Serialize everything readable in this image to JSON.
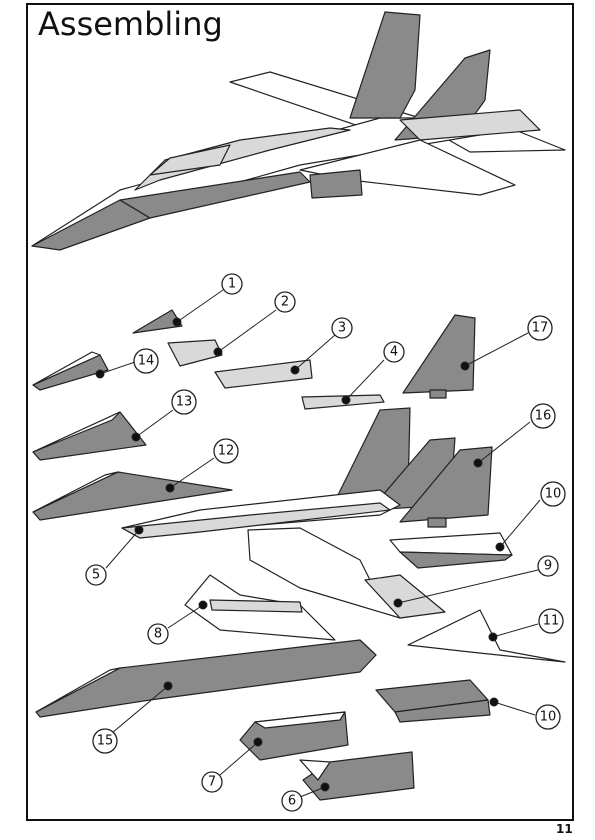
{
  "title": "Assembling",
  "page_number": "11",
  "callouts": [
    {
      "id": "1",
      "label": "1"
    },
    {
      "id": "2",
      "label": "2"
    },
    {
      "id": "3",
      "label": "3"
    },
    {
      "id": "4",
      "label": "4"
    },
    {
      "id": "5",
      "label": "5"
    },
    {
      "id": "6",
      "label": "6"
    },
    {
      "id": "7",
      "label": "7"
    },
    {
      "id": "8",
      "label": "8"
    },
    {
      "id": "9",
      "label": "9"
    },
    {
      "id": "10a",
      "label": "10"
    },
    {
      "id": "10b",
      "label": "10"
    },
    {
      "id": "11",
      "label": "11"
    },
    {
      "id": "12",
      "label": "12"
    },
    {
      "id": "13",
      "label": "13"
    },
    {
      "id": "14",
      "label": "14"
    },
    {
      "id": "15",
      "label": "15"
    },
    {
      "id": "16",
      "label": "16"
    },
    {
      "id": "17",
      "label": "17"
    }
  ],
  "colors": {
    "dark_part": "#8a8a8a",
    "light_part": "#d9d9d9",
    "white_part": "#ffffff",
    "stroke": "#222222"
  }
}
